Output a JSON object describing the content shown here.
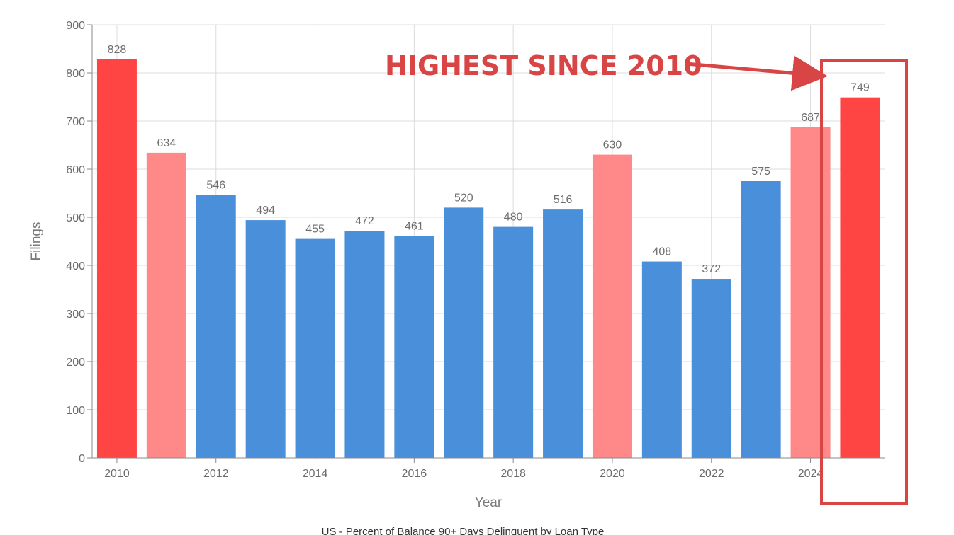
{
  "chart_data": {
    "type": "bar",
    "categories": [
      "2010",
      "2011",
      "2012",
      "2013",
      "2014",
      "2015",
      "2016",
      "2017",
      "2018",
      "2019",
      "2020",
      "2021",
      "2022",
      "2023",
      "2024",
      "2025"
    ],
    "values": [
      828,
      634,
      546,
      494,
      455,
      472,
      461,
      520,
      480,
      516,
      630,
      408,
      372,
      575,
      687,
      749
    ],
    "bar_colors": [
      "#ff4444",
      "#ff8888",
      "#4a8fd9",
      "#4a8fd9",
      "#4a8fd9",
      "#4a8fd9",
      "#4a8fd9",
      "#4a8fd9",
      "#4a8fd9",
      "#4a8fd9",
      "#ff8888",
      "#4a8fd9",
      "#4a8fd9",
      "#4a8fd9",
      "#ff8888",
      "#ff4444"
    ],
    "xlabel": "Year",
    "ylabel": "Filings",
    "ylim": [
      0,
      900
    ],
    "yticks": [
      0,
      100,
      200,
      300,
      400,
      500,
      600,
      700,
      800,
      900
    ],
    "xtick_labels": [
      "2010",
      "2012",
      "2014",
      "2016",
      "2018",
      "2020",
      "2022",
      "2024"
    ],
    "grid": true,
    "annotation": {
      "text": "HIGHEST SINCE 2010",
      "color": "#d94545",
      "target_category": "2025"
    },
    "caption": "US - Percent of Balance 90+ Days Delinquent by Loan Type"
  }
}
